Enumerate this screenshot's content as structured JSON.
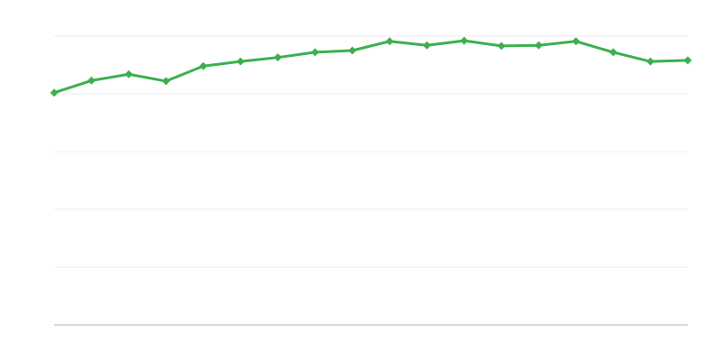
{
  "chart_data": {
    "type": "line",
    "categories": [
      null,
      null,
      null,
      null,
      null,
      null,
      null,
      null,
      null,
      null,
      null,
      null,
      null,
      null,
      null,
      null,
      null,
      null
    ],
    "series": [
      {
        "color": "#3cb04f",
        "values": [
          4.02,
          4.23,
          4.34,
          4.22,
          4.48,
          4.56,
          4.63,
          4.72,
          4.75,
          4.91,
          4.84,
          4.92,
          4.83,
          4.84,
          4.91,
          4.72,
          4.56,
          4.58
        ]
      }
    ],
    "ylim": [
      0,
      5
    ],
    "yticks": [
      0,
      1,
      2,
      3,
      4,
      5
    ],
    "grid": true
  }
}
